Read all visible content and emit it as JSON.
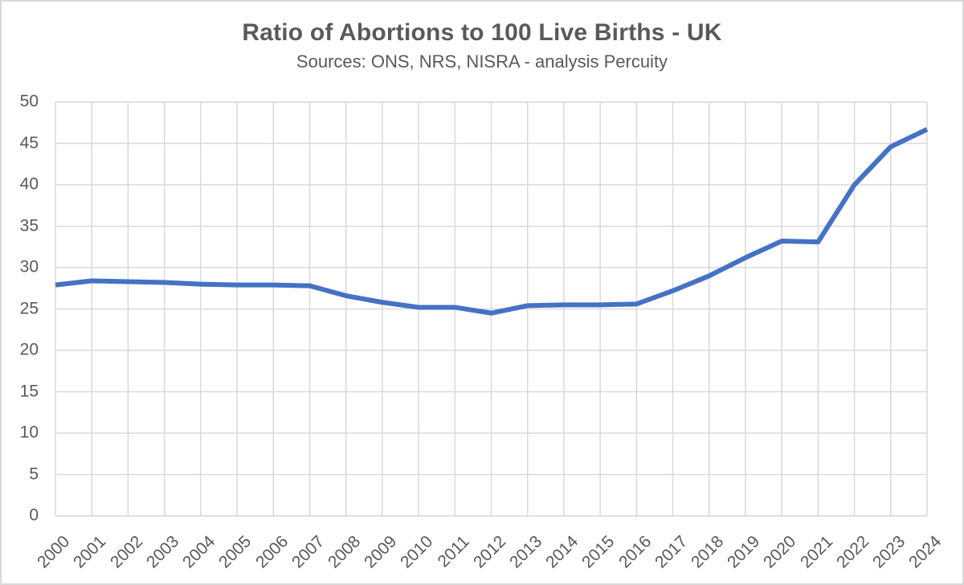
{
  "header": {
    "title": "Ratio of Abortions to 100 Live Births - UK",
    "subtitle": "Sources: ONS, NRS, NISRA - analysis Percuity"
  },
  "chart_data": {
    "type": "line",
    "title": "Ratio of Abortions to 100 Live Births - UK",
    "subtitle": "Sources: ONS, NRS, NISRA - analysis Percuity",
    "x": [
      2000,
      2001,
      2002,
      2003,
      2004,
      2005,
      2006,
      2007,
      2008,
      2009,
      2010,
      2011,
      2012,
      2013,
      2014,
      2015,
      2016,
      2017,
      2018,
      2019,
      2020,
      2021,
      2022,
      2023,
      2024
    ],
    "series": [
      {
        "name": "Ratio of abortions to 100 live births (UK)",
        "values": [
          27.9,
          28.4,
          28.3,
          28.2,
          28.0,
          27.9,
          27.9,
          27.8,
          26.6,
          25.8,
          25.2,
          25.2,
          24.5,
          25.4,
          25.5,
          25.5,
          25.6,
          27.2,
          29.0,
          31.2,
          33.2,
          33.1,
          40.0,
          44.6,
          46.7
        ]
      }
    ],
    "xlabel": "",
    "ylabel": "",
    "ylim": [
      0,
      50
    ],
    "yticks": [
      0,
      5,
      10,
      15,
      20,
      25,
      30,
      35,
      40,
      45,
      50
    ],
    "grid": "both",
    "legend": "none",
    "colors": {
      "line": "#4472C4",
      "gridline": "#d9d9d9",
      "text": "#595959",
      "background": "#ffffff",
      "border": "#d9d9d9"
    }
  }
}
